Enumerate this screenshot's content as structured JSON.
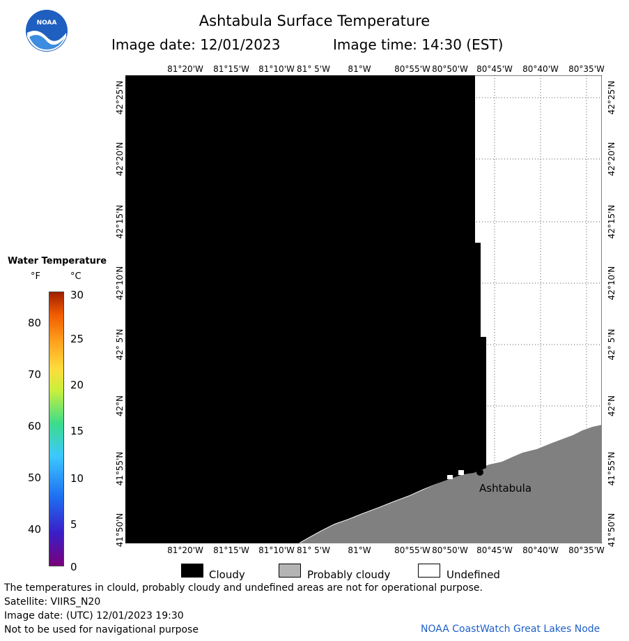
{
  "header": {
    "title": "Ashtabula Surface Temperature",
    "image_date": "Image date: 12/01/2023",
    "image_time": "Image time: 14:30 (EST)"
  },
  "logo": {
    "text": "NOAA",
    "icon": "noaa-logo-icon"
  },
  "map": {
    "lon_ticks": [
      "81°20'W",
      "81°15'W",
      "81°10'W",
      "81° 5'W",
      "81°W",
      "80°55'W",
      "80°50'W",
      "80°45'W",
      "80°40'W",
      "80°35'W"
    ],
    "lat_ticks": [
      "42°25'N",
      "42°20'N",
      "42°15'N",
      "42°10'N",
      "42° 5'N",
      "42°N",
      "41°55'N",
      "41°50'N"
    ],
    "station": "Ashtabula",
    "colors": {
      "cloudy": "#000000",
      "probably_cloudy": "#808080",
      "undefined": "#ffffff"
    }
  },
  "legend": {
    "title": "Water Temperature",
    "unit_f": "°F",
    "unit_c": "°C",
    "f_labels": [
      "80",
      "70",
      "60",
      "50",
      "40"
    ],
    "c_labels": [
      "30",
      "25",
      "20",
      "15",
      "10",
      "5",
      "0"
    ],
    "keys": {
      "cloudy": "Cloudy",
      "probably_cloudy": "Probably cloudy",
      "undefined": "Undefined"
    }
  },
  "footer": {
    "disclaimer": "The temperatures in clould, probably cloudy and undefined areas are not for operational purpose.",
    "satellite": "Satellite: VIIRS_N20",
    "utc_date": "Image date: (UTC) 12/01/2023  19:30",
    "nav": "Not to be used for navigational purpose",
    "credit": "NOAA CoastWatch Great Lakes Node"
  }
}
